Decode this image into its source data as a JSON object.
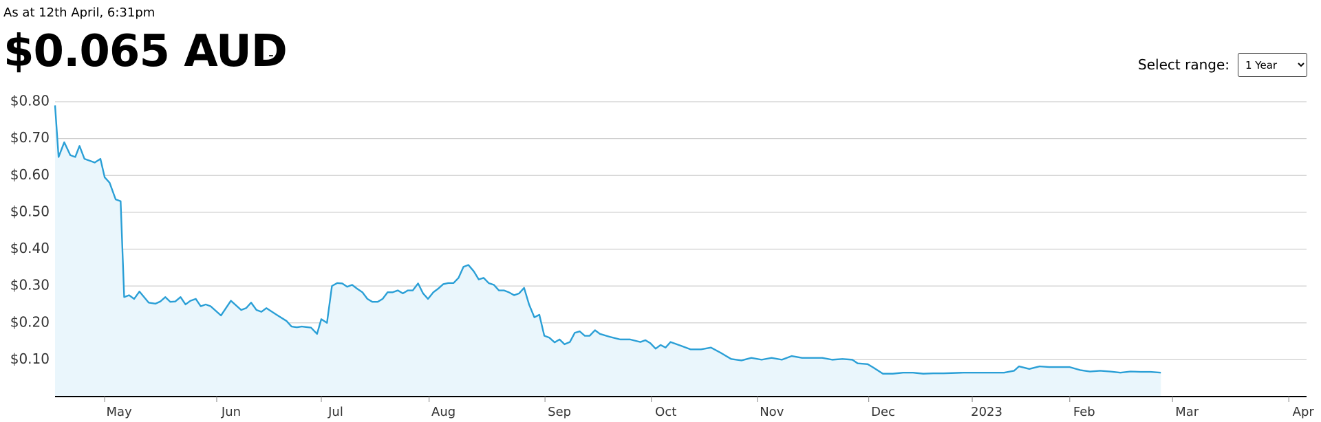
{
  "header": {
    "as_at": "As at 12th April, 6:31pm",
    "price": "$0.065 AUD",
    "change": "-"
  },
  "controls": {
    "range_label": "Select range:",
    "range_value": "1 Year"
  },
  "chart_data": {
    "type": "area",
    "color": "#2a9fd6",
    "fill": "#eaf6fc",
    "grid": true,
    "xlim": [
      0,
      353
    ],
    "ylim": [
      0,
      0.8
    ],
    "yticks": [
      {
        "value": 0.1,
        "label": "$0.10"
      },
      {
        "value": 0.2,
        "label": "$0.20"
      },
      {
        "value": 0.3,
        "label": "$0.30"
      },
      {
        "value": 0.4,
        "label": "$0.40"
      },
      {
        "value": 0.5,
        "label": "$0.50"
      },
      {
        "value": 0.6,
        "label": "$0.60"
      },
      {
        "value": 0.7,
        "label": "$0.70"
      },
      {
        "value": 0.8,
        "label": "$0.80"
      }
    ],
    "xticks": [
      {
        "value": 14,
        "label": "May"
      },
      {
        "value": 45.6,
        "label": "Jun"
      },
      {
        "value": 75.1,
        "label": "Jul"
      },
      {
        "value": 105.5,
        "label": "Aug"
      },
      {
        "value": 138.2,
        "label": "Sep"
      },
      {
        "value": 168.2,
        "label": "Oct"
      },
      {
        "value": 198.1,
        "label": "Nov"
      },
      {
        "value": 229.5,
        "label": "Dec"
      },
      {
        "value": 258.7,
        "label": "2023"
      },
      {
        "value": 286.2,
        "label": "Feb"
      },
      {
        "value": 315.2,
        "label": "Mar"
      },
      {
        "value": 348,
        "label": "Apr"
      }
    ],
    "x": [
      0,
      1,
      2.6,
      4.3,
      5.7,
      6.9,
      8.3,
      11.2,
      12.8,
      14,
      15.4,
      17.1,
      18.5,
      19.5,
      20.9,
      22.3,
      23.8,
      26.4,
      28.3,
      29.7,
      31.1,
      32.5,
      33.9,
      35.4,
      36.8,
      38.2,
      39.7,
      41.1,
      42.5,
      43.9,
      46.8,
      49.6,
      52.5,
      53.9,
      55.3,
      56.8,
      58.2,
      59.6,
      62.5,
      65.3,
      66.7,
      68.2,
      69.6,
      72.2,
      73.9,
      75.1,
      76.7,
      78.1,
      79.6,
      81,
      82.4,
      83.8,
      85.3,
      86.7,
      88.1,
      89.5,
      91,
      92.4,
      93.8,
      95.2,
      96.7,
      98.1,
      99.5,
      100.9,
      102.4,
      103.8,
      105.2,
      106.7,
      108.1,
      109.5,
      110.9,
      112.4,
      113.8,
      115.2,
      116.6,
      118.1,
      119.5,
      120.9,
      122.3,
      123.8,
      125.2,
      126.6,
      128,
      129.5,
      130.9,
      132.3,
      133.7,
      135.2,
      136.6,
      138,
      139.4,
      140.9,
      142.3,
      143.7,
      145.2,
      146.6,
      148,
      149.4,
      150.8,
      152.3,
      153.7,
      156.5,
      159.4,
      162.2,
      165.1,
      166.5,
      167.9,
      169.4,
      170.8,
      172.2,
      173.6,
      176.5,
      179.3,
      182.2,
      185,
      187.9,
      190.7,
      193.6,
      196.4,
      199.3,
      202.1,
      205,
      207.8,
      210.7,
      213.5,
      216.4,
      219.2,
      222.1,
      224.9,
      226.4,
      229.2,
      230.6,
      233.5,
      236.3,
      239.2,
      242,
      244.9,
      247.7,
      250.6,
      256.3,
      262,
      267.7,
      270.5,
      271.9,
      274.8,
      277.7,
      280.5,
      283.4,
      286.2,
      289.1,
      291.9,
      294.8,
      297.6,
      300.5,
      303.3,
      306.2,
      309,
      311.9
    ],
    "values": [
      0.79,
      0.65,
      0.69,
      0.655,
      0.65,
      0.68,
      0.645,
      0.635,
      0.645,
      0.595,
      0.58,
      0.535,
      0.53,
      0.27,
      0.275,
      0.265,
      0.285,
      0.255,
      0.252,
      0.258,
      0.27,
      0.257,
      0.258,
      0.27,
      0.25,
      0.26,
      0.265,
      0.245,
      0.25,
      0.245,
      0.22,
      0.26,
      0.235,
      0.24,
      0.255,
      0.235,
      0.23,
      0.24,
      0.222,
      0.205,
      0.19,
      0.188,
      0.19,
      0.187,
      0.17,
      0.21,
      0.2,
      0.3,
      0.308,
      0.307,
      0.298,
      0.303,
      0.292,
      0.283,
      0.265,
      0.257,
      0.257,
      0.265,
      0.283,
      0.283,
      0.288,
      0.28,
      0.288,
      0.288,
      0.307,
      0.28,
      0.265,
      0.283,
      0.293,
      0.305,
      0.308,
      0.308,
      0.322,
      0.352,
      0.357,
      0.34,
      0.318,
      0.322,
      0.308,
      0.303,
      0.288,
      0.288,
      0.283,
      0.275,
      0.28,
      0.295,
      0.25,
      0.215,
      0.222,
      0.165,
      0.16,
      0.147,
      0.155,
      0.142,
      0.148,
      0.173,
      0.177,
      0.165,
      0.165,
      0.18,
      0.17,
      0.162,
      0.155,
      0.155,
      0.148,
      0.153,
      0.145,
      0.13,
      0.14,
      0.133,
      0.148,
      0.138,
      0.128,
      0.128,
      0.133,
      0.118,
      0.102,
      0.098,
      0.105,
      0.1,
      0.105,
      0.1,
      0.11,
      0.105,
      0.105,
      0.105,
      0.1,
      0.102,
      0.1,
      0.09,
      0.088,
      0.08,
      0.062,
      0.062,
      0.065,
      0.065,
      0.062,
      0.063,
      0.063,
      0.065,
      0.065,
      0.065,
      0.07,
      0.082,
      0.075,
      0.082,
      0.08,
      0.08,
      0.08,
      0.072,
      0.068,
      0.07,
      0.068,
      0.065,
      0.068,
      0.067,
      0.067,
      0.065
    ]
  }
}
